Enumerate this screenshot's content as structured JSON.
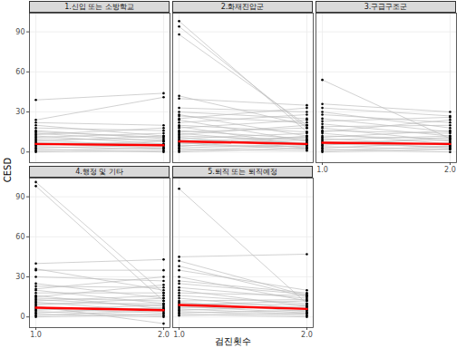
{
  "x_label": "검진횟수",
  "y_label": "CESD",
  "chart_data": [
    {
      "type": "line",
      "title": "1.신입 또는 소방학교",
      "x": [
        1,
        2
      ],
      "xlim": [
        0.95,
        2.05
      ],
      "xticks": [
        1,
        2
      ],
      "ylim": [
        -8,
        104
      ],
      "yticks": [
        0,
        30,
        60,
        90
      ],
      "grid": true,
      "tick_labels": "y",
      "color": "#bdbdbd",
      "marker": "circle",
      "lines": [
        [
          39,
          44
        ],
        [
          24,
          41
        ],
        [
          22,
          20
        ],
        [
          20,
          12
        ],
        [
          18,
          16
        ],
        [
          16,
          10
        ],
        [
          14,
          8
        ],
        [
          13,
          18
        ],
        [
          12,
          6
        ],
        [
          11,
          14
        ],
        [
          10,
          9
        ],
        [
          9,
          4
        ],
        [
          8,
          12
        ],
        [
          7,
          6
        ],
        [
          6,
          3
        ],
        [
          5,
          8
        ],
        [
          4,
          2
        ],
        [
          3,
          5
        ],
        [
          2,
          0
        ],
        [
          1,
          3
        ],
        [
          0,
          1
        ],
        [
          15,
          11
        ]
      ],
      "mean": {
        "values": [
          6,
          5
        ],
        "color": "#ff0000"
      }
    },
    {
      "type": "line",
      "title": "2.화재진압군",
      "x": [
        1,
        2
      ],
      "xlim": [
        0.95,
        2.05
      ],
      "xticks": [
        1,
        2
      ],
      "ylim": [
        -8,
        104
      ],
      "yticks": [
        0,
        30,
        60,
        90
      ],
      "grid": true,
      "tick_labels": false,
      "color": "#bdbdbd",
      "marker": "circle",
      "lines": [
        [
          98,
          15
        ],
        [
          94,
          18
        ],
        [
          88,
          20
        ],
        [
          42,
          20
        ],
        [
          40,
          35
        ],
        [
          33,
          30
        ],
        [
          30,
          25
        ],
        [
          28,
          12
        ],
        [
          27,
          22
        ],
        [
          25,
          33
        ],
        [
          24,
          8
        ],
        [
          22,
          28
        ],
        [
          20,
          15
        ],
        [
          19,
          5
        ],
        [
          18,
          24
        ],
        [
          16,
          10
        ],
        [
          15,
          18
        ],
        [
          14,
          6
        ],
        [
          13,
          20
        ],
        [
          12,
          9
        ],
        [
          11,
          3
        ],
        [
          10,
          14
        ],
        [
          9,
          7
        ],
        [
          8,
          11
        ],
        [
          7,
          2
        ],
        [
          6,
          9
        ],
        [
          5,
          4
        ],
        [
          4,
          12
        ],
        [
          3,
          6
        ],
        [
          2,
          1
        ],
        [
          1,
          5
        ],
        [
          0,
          3
        ]
      ],
      "mean": {
        "values": [
          8,
          6
        ],
        "color": "#ff0000"
      }
    },
    {
      "type": "line",
      "title": "3.구급구조군",
      "x": [
        1,
        2
      ],
      "xlim": [
        0.95,
        2.05
      ],
      "xticks": [
        1,
        2
      ],
      "ylim": [
        -8,
        104
      ],
      "yticks": [
        0,
        30,
        60,
        90
      ],
      "grid": true,
      "tick_labels": "x",
      "color": "#bdbdbd",
      "marker": "circle",
      "lines": [
        [
          54,
          10
        ],
        [
          36,
          30
        ],
        [
          33,
          27
        ],
        [
          30,
          18
        ],
        [
          28,
          22
        ],
        [
          25,
          15
        ],
        [
          23,
          26
        ],
        [
          21,
          12
        ],
        [
          19,
          20
        ],
        [
          18,
          8
        ],
        [
          16,
          14
        ],
        [
          15,
          24
        ],
        [
          14,
          6
        ],
        [
          12,
          10
        ],
        [
          11,
          16
        ],
        [
          10,
          5
        ],
        [
          9,
          12
        ],
        [
          8,
          3
        ],
        [
          7,
          9
        ],
        [
          6,
          4
        ],
        [
          5,
          11
        ],
        [
          4,
          2
        ],
        [
          3,
          7
        ],
        [
          2,
          0
        ],
        [
          1,
          4
        ],
        [
          0,
          2
        ]
      ],
      "mean": {
        "values": [
          7,
          6
        ],
        "color": "#ff0000"
      }
    },
    {
      "type": "line",
      "title": "4.행정 및 기타",
      "x": [
        1,
        2
      ],
      "xlim": [
        0.95,
        2.05
      ],
      "xticks": [
        1,
        2
      ],
      "ylim": [
        -8,
        104
      ],
      "yticks": [
        0,
        30,
        60,
        90
      ],
      "grid": true,
      "tick_labels": true,
      "color": "#bdbdbd",
      "marker": "circle",
      "lines": [
        [
          101,
          18
        ],
        [
          98,
          12
        ],
        [
          40,
          43
        ],
        [
          36,
          20
        ],
        [
          35,
          35
        ],
        [
          30,
          27
        ],
        [
          25,
          14
        ],
        [
          23,
          22
        ],
        [
          21,
          30
        ],
        [
          20,
          10
        ],
        [
          18,
          18
        ],
        [
          16,
          6
        ],
        [
          15,
          24
        ],
        [
          14,
          12
        ],
        [
          13,
          8
        ],
        [
          12,
          16
        ],
        [
          11,
          4
        ],
        [
          10,
          10
        ],
        [
          9,
          14
        ],
        [
          8,
          -5
        ],
        [
          7,
          6
        ],
        [
          6,
          3
        ],
        [
          5,
          9
        ],
        [
          4,
          1
        ],
        [
          3,
          7
        ],
        [
          2,
          0
        ],
        [
          1,
          5
        ],
        [
          0,
          2
        ]
      ],
      "mean": {
        "values": [
          7,
          5
        ],
        "color": "#ff0000"
      }
    },
    {
      "type": "line",
      "title": "5.퇴직 또는 퇴직예정",
      "x": [
        1,
        2
      ],
      "xlim": [
        0.95,
        2.05
      ],
      "xticks": [
        1,
        2
      ],
      "ylim": [
        -8,
        104
      ],
      "yticks": [
        0,
        30,
        60,
        90
      ],
      "grid": true,
      "tick_labels": "x",
      "color": "#bdbdbd",
      "marker": "circle",
      "lines": [
        [
          96,
          10
        ],
        [
          45,
          47
        ],
        [
          42,
          16
        ],
        [
          38,
          15
        ],
        [
          35,
          20
        ],
        [
          30,
          12
        ],
        [
          27,
          18
        ],
        [
          25,
          17
        ],
        [
          22,
          14
        ],
        [
          20,
          8
        ],
        [
          18,
          16
        ],
        [
          16,
          10
        ],
        [
          14,
          6
        ],
        [
          12,
          13
        ],
        [
          11,
          4
        ],
        [
          10,
          9
        ],
        [
          9,
          12
        ],
        [
          8,
          3
        ],
        [
          7,
          7
        ],
        [
          6,
          2
        ],
        [
          5,
          8
        ],
        [
          4,
          1
        ],
        [
          3,
          5
        ],
        [
          2,
          0
        ],
        [
          1,
          3
        ]
      ],
      "mean": {
        "values": [
          9,
          6
        ],
        "color": "#ff0000"
      }
    }
  ]
}
